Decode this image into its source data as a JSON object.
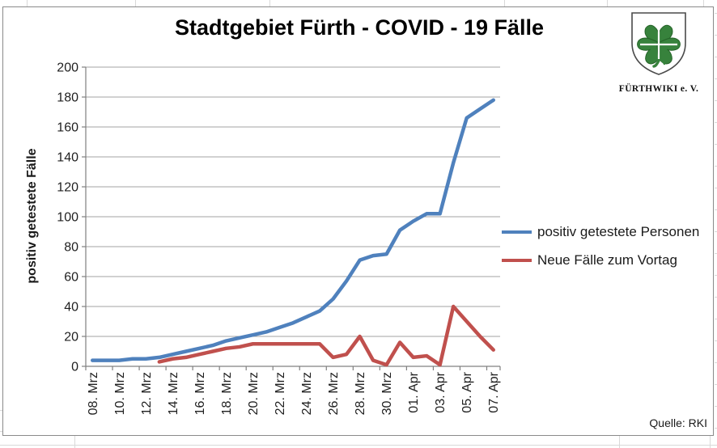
{
  "source_note": "Quelle: RKI",
  "logo": {
    "text": "FÜRTHWIKI e. V.",
    "shield_fill": "#ffffff",
    "clover_color": "#37823C"
  },
  "chart_data": {
    "type": "line",
    "title": "Stadtgebiet Fürth - COVID - 19 Fälle",
    "ylabel": "positiv getestete Fälle",
    "xlabel": "",
    "ylim": [
      0,
      200
    ],
    "ytick_step": 20,
    "xtick_every": 2,
    "grid": true,
    "legend_position": "right",
    "gridline_color": "#A3A3A3",
    "axis_color": "#808080",
    "label_color": "#1f1f1f",
    "categories": [
      "08. Mrz",
      "09. Mrz",
      "10. Mrz",
      "11. Mrz",
      "12. Mrz",
      "13. Mrz",
      "14. Mrz",
      "15. Mrz",
      "16. Mrz",
      "17. Mrz",
      "18. Mrz",
      "19. Mrz",
      "20. Mrz",
      "21. Mrz",
      "22. Mrz",
      "23. Mrz",
      "24. Mrz",
      "25. Mrz",
      "26. Mrz",
      "27. Mrz",
      "28. Mrz",
      "29. Mrz",
      "30. Mrz",
      "31. Mrz",
      "01. Apr",
      "02. Apr",
      "03. Apr",
      "04. Apr",
      "05. Apr",
      "06. Apr",
      "07. Apr"
    ],
    "series": [
      {
        "name": "positiv getestete Personen",
        "color": "#4F81BD",
        "values": [
          4,
          4,
          4,
          5,
          5,
          6,
          8,
          10,
          12,
          14,
          17,
          19,
          21,
          23,
          26,
          29,
          33,
          37,
          45,
          57,
          71,
          74,
          75,
          91,
          97,
          102,
          102,
          136,
          166,
          172,
          178
        ]
      },
      {
        "name": "Neue Fälle zum Vortag",
        "color": "#C0504D",
        "values": [
          null,
          null,
          null,
          null,
          null,
          3,
          5,
          6,
          8,
          10,
          12,
          13,
          15,
          15,
          15,
          15,
          15,
          15,
          6,
          8,
          20,
          4,
          1,
          16,
          6,
          7,
          1,
          40,
          30,
          20,
          11
        ]
      }
    ]
  }
}
